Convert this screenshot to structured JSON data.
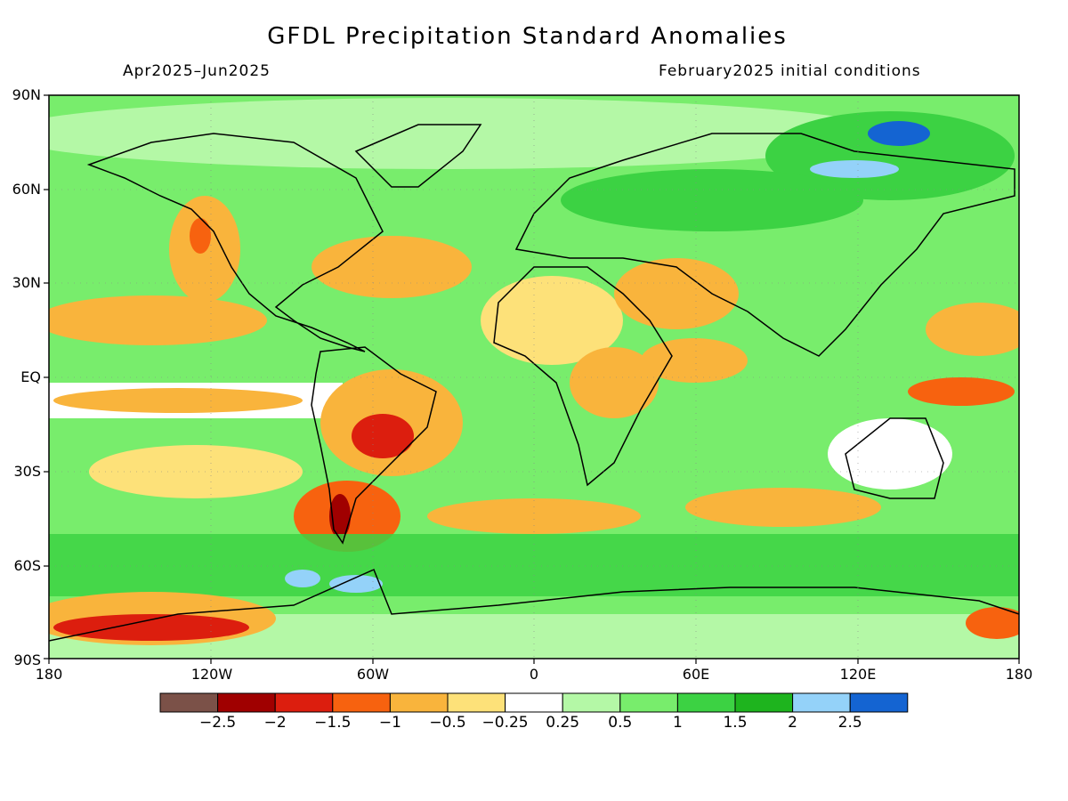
{
  "title": "GFDL Precipitation Standard Anomalies",
  "period": "Apr2025–Jun2025",
  "init": "February2025 initial conditions",
  "lat_labels": [
    "90N",
    "60N",
    "30N",
    "EQ",
    "30S",
    "60S",
    "90S"
  ],
  "lon_labels": [
    "180",
    "120W",
    "60W",
    "0",
    "60E",
    "120E",
    "180"
  ],
  "colorbar": {
    "colors": [
      "#7b5148",
      "#a00000",
      "#dc1e0e",
      "#f7620f",
      "#f9b43c",
      "#fde179",
      "#ffffff",
      "#b4f8a6",
      "#78ed6c",
      "#3cd243",
      "#1eb41e",
      "#94d2f9",
      "#1464d2"
    ],
    "labels": [
      "−2.5",
      "−2",
      "−1.5",
      "−1",
      "−0.5",
      "−0.25",
      "0.25",
      "0.5",
      "1",
      "1.5",
      "2",
      "2.5"
    ]
  }
}
